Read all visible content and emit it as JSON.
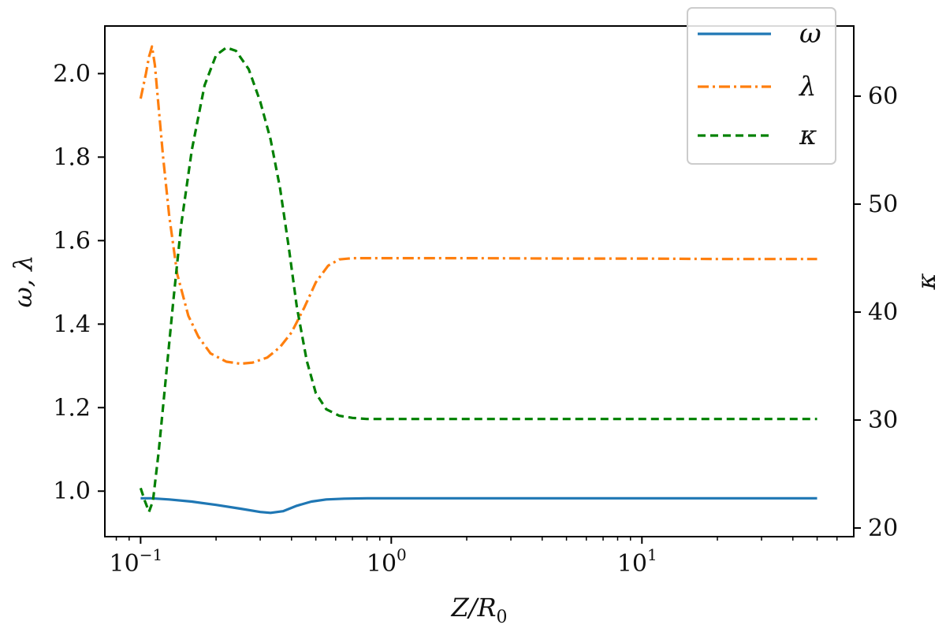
{
  "chart_data": {
    "type": "line",
    "x_scale": "log",
    "xlim": [
      0.072,
      70
    ],
    "ylim_left": [
      0.891,
      2.114
    ],
    "ylim_right": [
      19.2,
      66.5
    ],
    "xlabel": "Z/R",
    "xlabel_sub": "0",
    "ylabel_left": "ω, λ",
    "ylabel_right": "κ",
    "x_ticks": [
      {
        "value": 0.1,
        "base": "10",
        "exp": "−1"
      },
      {
        "value": 1,
        "base": "10",
        "exp": "0"
      },
      {
        "value": 10,
        "base": "10",
        "exp": "1"
      }
    ],
    "y_left_ticks": [
      1.0,
      1.2,
      1.4,
      1.6,
      1.8,
      2.0
    ],
    "y_left_tick_labels": [
      "1.0",
      "1.2",
      "1.4",
      "1.6",
      "1.8",
      "2.0"
    ],
    "y_right_ticks": [
      20,
      30,
      40,
      50,
      60
    ],
    "y_right_tick_labels": [
      "20",
      "30",
      "40",
      "50",
      "60"
    ],
    "legend": {
      "position": "top-right"
    },
    "series": [
      {
        "name": "ω",
        "axis": "left",
        "color": "#1f77b4",
        "style": "solid",
        "points": [
          [
            0.1,
            0.983
          ],
          [
            0.11,
            0.983
          ],
          [
            0.13,
            0.98
          ],
          [
            0.16,
            0.975
          ],
          [
            0.2,
            0.967
          ],
          [
            0.25,
            0.958
          ],
          [
            0.3,
            0.95
          ],
          [
            0.33,
            0.948
          ],
          [
            0.37,
            0.952
          ],
          [
            0.42,
            0.965
          ],
          [
            0.48,
            0.975
          ],
          [
            0.55,
            0.98
          ],
          [
            0.65,
            0.982
          ],
          [
            0.8,
            0.983
          ],
          [
            1.0,
            0.983
          ],
          [
            2,
            0.983
          ],
          [
            5,
            0.983
          ],
          [
            10,
            0.983
          ],
          [
            20,
            0.983
          ],
          [
            50,
            0.983
          ]
        ]
      },
      {
        "name": "λ",
        "axis": "left",
        "color": "#ff7f0e",
        "style": "dashdot",
        "points": [
          [
            0.1,
            1.94
          ],
          [
            0.105,
            2.0
          ],
          [
            0.108,
            2.04
          ],
          [
            0.111,
            2.065
          ],
          [
            0.114,
            2.02
          ],
          [
            0.118,
            1.92
          ],
          [
            0.123,
            1.8
          ],
          [
            0.13,
            1.66
          ],
          [
            0.14,
            1.52
          ],
          [
            0.155,
            1.42
          ],
          [
            0.17,
            1.37
          ],
          [
            0.19,
            1.33
          ],
          [
            0.22,
            1.31
          ],
          [
            0.25,
            1.305
          ],
          [
            0.28,
            1.308
          ],
          [
            0.32,
            1.32
          ],
          [
            0.36,
            1.345
          ],
          [
            0.4,
            1.38
          ],
          [
            0.45,
            1.44
          ],
          [
            0.5,
            1.5
          ],
          [
            0.56,
            1.54
          ],
          [
            0.62,
            1.555
          ],
          [
            0.7,
            1.558
          ],
          [
            0.8,
            1.558
          ],
          [
            1.0,
            1.558
          ],
          [
            2,
            1.558
          ],
          [
            5,
            1.557
          ],
          [
            10,
            1.557
          ],
          [
            20,
            1.556
          ],
          [
            50,
            1.556
          ]
        ]
      },
      {
        "name": "κ",
        "axis": "right",
        "color": "#008000",
        "style": "dashed",
        "points": [
          [
            0.1,
            23.7
          ],
          [
            0.104,
            22.5
          ],
          [
            0.108,
            21.5
          ],
          [
            0.112,
            22.5
          ],
          [
            0.118,
            27.0
          ],
          [
            0.125,
            33.0
          ],
          [
            0.135,
            41.0
          ],
          [
            0.145,
            48.0
          ],
          [
            0.16,
            55.0
          ],
          [
            0.18,
            61.0
          ],
          [
            0.2,
            63.8
          ],
          [
            0.22,
            64.5
          ],
          [
            0.24,
            64.2
          ],
          [
            0.27,
            62.5
          ],
          [
            0.3,
            59.5
          ],
          [
            0.33,
            56.0
          ],
          [
            0.36,
            51.5
          ],
          [
            0.39,
            46.0
          ],
          [
            0.42,
            40.5
          ],
          [
            0.46,
            35.5
          ],
          [
            0.5,
            32.5
          ],
          [
            0.55,
            31.0
          ],
          [
            0.62,
            30.4
          ],
          [
            0.7,
            30.2
          ],
          [
            0.8,
            30.1
          ],
          [
            1.0,
            30.1
          ],
          [
            2,
            30.1
          ],
          [
            5,
            30.1
          ],
          [
            10,
            30.1
          ],
          [
            20,
            30.1
          ],
          [
            50,
            30.1
          ]
        ]
      }
    ]
  }
}
